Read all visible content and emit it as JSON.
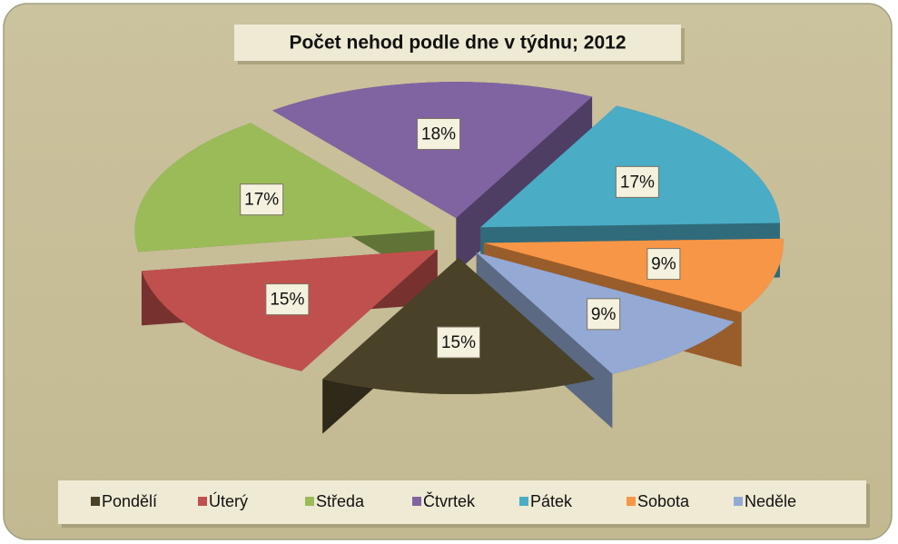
{
  "chart_data": {
    "type": "pie",
    "title": "Počet nehod podle dne v týdnu; 2012",
    "categories": [
      "Pondělí",
      "Úterý",
      "Středa",
      "Čtvrtek",
      "Pátek",
      "Sobota",
      "Neděle"
    ],
    "values": [
      15,
      15,
      17,
      18,
      17,
      9,
      9
    ],
    "value_labels": [
      "15%",
      "15%",
      "17%",
      "18%",
      "17%",
      "9%",
      "9%"
    ],
    "colors": [
      "#4a4228",
      "#c0504d",
      "#9bbb59",
      "#8064a2",
      "#4bacc6",
      "#f79646",
      "#94a9d4"
    ],
    "legend": "bottom"
  }
}
